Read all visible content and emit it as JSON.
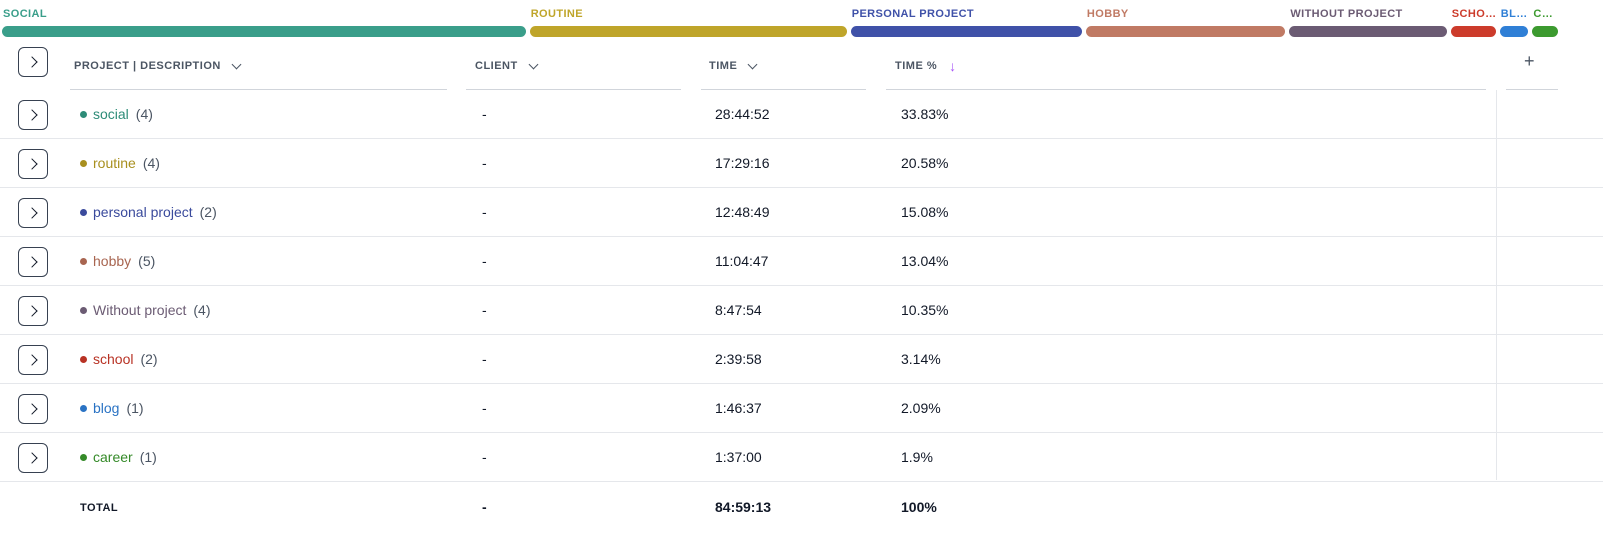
{
  "distribution": [
    {
      "label": "SOCIAL",
      "color": "#3a9e8a",
      "share": 33.83
    },
    {
      "label": "ROUTINE",
      "color": "#bfa52a",
      "share": 20.58
    },
    {
      "label": "PERSONAL PROJECT",
      "color": "#3f51a8",
      "share": 15.08
    },
    {
      "label": "HOBBY",
      "color": "#c07a64",
      "share": 13.04
    },
    {
      "label": "WITHOUT PROJECT",
      "color": "#6b5b73",
      "share": 10.35
    },
    {
      "label": "SCHOOL",
      "color": "#cc3b2b",
      "share": 3.14
    },
    {
      "label": "BLOG",
      "color": "#2f7fd6",
      "share": 2.09
    },
    {
      "label": "CAREER",
      "color": "#3c9a2f",
      "share": 1.9
    }
  ],
  "headers": {
    "project": "PROJECT | DESCRIPTION",
    "client": "CLIENT",
    "time": "TIME",
    "time_pct": "TIME %",
    "add": "+"
  },
  "rows": [
    {
      "name": "social",
      "count": "(4)",
      "client": "-",
      "time": "28:44:52",
      "pct": "33.83%",
      "color": "#2d8c78"
    },
    {
      "name": "routine",
      "count": "(4)",
      "client": "-",
      "time": "17:29:16",
      "pct": "20.58%",
      "color": "#a88f1e"
    },
    {
      "name": "personal project",
      "count": "(2)",
      "client": "-",
      "time": "12:48:49",
      "pct": "15.08%",
      "color": "#3a4a9c"
    },
    {
      "name": "hobby",
      "count": "(5)",
      "client": "-",
      "time": "11:04:47",
      "pct": "13.04%",
      "color": "#a86550"
    },
    {
      "name": "Without project",
      "count": "(4)",
      "client": "-",
      "time": "8:47:54",
      "pct": "10.35%",
      "color": "#6b5b73"
    },
    {
      "name": "school",
      "count": "(2)",
      "client": "-",
      "time": "2:39:58",
      "pct": "3.14%",
      "color": "#b83224"
    },
    {
      "name": "blog",
      "count": "(1)",
      "client": "-",
      "time": "1:46:37",
      "pct": "2.09%",
      "color": "#2a73c4"
    },
    {
      "name": "career",
      "count": "(1)",
      "client": "-",
      "time": "1:37:00",
      "pct": "1.9%",
      "color": "#348a28"
    }
  ],
  "total": {
    "label": "TOTAL",
    "client": "-",
    "time": "84:59:13",
    "pct": "100%"
  }
}
